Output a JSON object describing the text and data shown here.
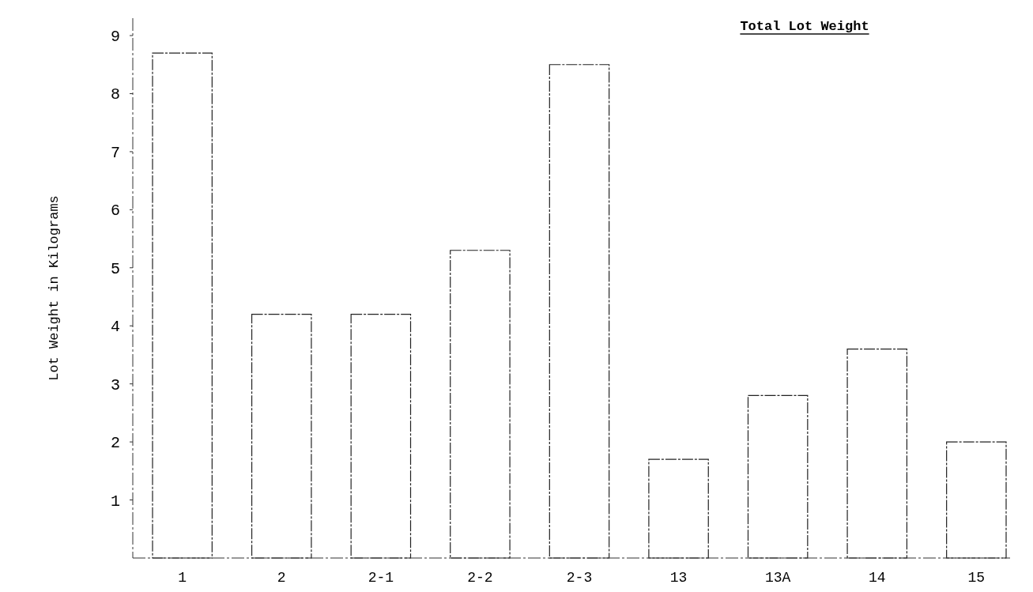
{
  "chart_data": {
    "type": "bar",
    "title": "Total Lot Weight",
    "ylabel": "Lot Weight in Kilograms",
    "categories": [
      "1",
      "2",
      "2-1",
      "2-2",
      "2-3",
      "13",
      "13A",
      "14",
      "15"
    ],
    "values": [
      8.7,
      4.2,
      4.2,
      5.3,
      8.5,
      1.7,
      2.8,
      3.6,
      2.0
    ],
    "color": "#ffffff",
    "ylim": [
      0,
      9.3
    ],
    "yticks": [
      1,
      2,
      3,
      4,
      5,
      6,
      7,
      8,
      9
    ],
    "grid": false
  }
}
